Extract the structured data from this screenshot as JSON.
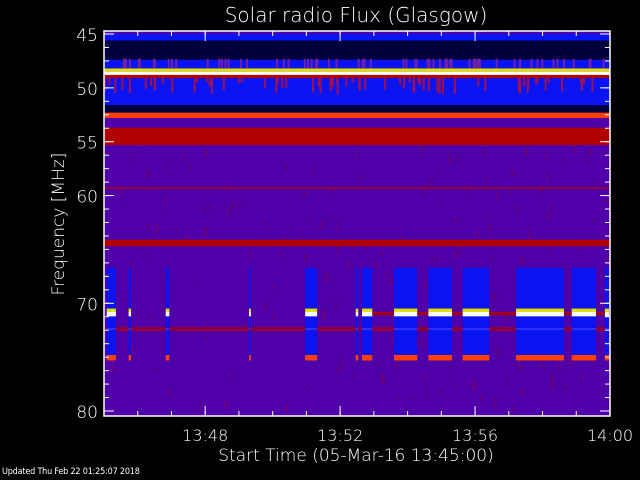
{
  "chart_data": {
    "type": "heatmap",
    "title": "Solar radio Flux (Glasgow)",
    "xlabel": "Start Time (05-Mar-16 13:45:00)",
    "ylabel": "Frequency [MHz]",
    "xlim": [
      "13:45:00",
      "14:00:00"
    ],
    "ylim": [
      80,
      45
    ],
    "y_inverted": true,
    "xticks": [
      {
        "time": "13:48:00",
        "label": "13:48"
      },
      {
        "time": "13:52:00",
        "label": "13:52"
      },
      {
        "time": "13:56:00",
        "label": "13:56"
      },
      {
        "time": "14:00:00",
        "label": "14:00"
      }
    ],
    "x_minor_tick_minutes": 1,
    "yticks": [
      {
        "value": 45,
        "label": "45"
      },
      {
        "value": 50,
        "label": "50"
      },
      {
        "value": 55,
        "label": "55"
      },
      {
        "value": 60,
        "label": "60"
      },
      {
        "value": 70,
        "label": "70"
      },
      {
        "value": 80,
        "label": "80"
      }
    ],
    "y_minor_tick_mhz": 1.25,
    "background_color": "#5000a8",
    "colors": {
      "navy": "#00003c",
      "blue": "#0a14f0",
      "red": "#b00000",
      "orange": "#ff4000",
      "yellow": "#e0e000",
      "white": "#ffffff",
      "dark_red": "#8a0040"
    },
    "continuous_bands": [
      {
        "f_low": 45.0,
        "f_high": 45.6,
        "color": "blue"
      },
      {
        "f_low": 45.6,
        "f_high": 47.4,
        "color": "navy"
      },
      {
        "f_low": 47.4,
        "f_high": 48.2,
        "color": "blue"
      },
      {
        "f_low": 48.2,
        "f_high": 48.5,
        "color": "yellow"
      },
      {
        "f_low": 48.5,
        "f_high": 48.8,
        "color": "white"
      },
      {
        "f_low": 48.8,
        "f_high": 49.1,
        "color": "red"
      },
      {
        "f_low": 49.1,
        "f_high": 51.6,
        "color": "blue"
      },
      {
        "f_low": 51.6,
        "f_high": 52.3,
        "color": "navy"
      },
      {
        "f_low": 52.3,
        "f_high": 52.8,
        "color": "orange"
      },
      {
        "f_low": 53.7,
        "f_high": 55.3,
        "color": "red"
      },
      {
        "f_low": 59.2,
        "f_high": 59.4,
        "color": "dark_red"
      },
      {
        "f_low": 64.1,
        "f_high": 64.7,
        "color": "red"
      },
      {
        "f_low": 72.2,
        "f_high": 72.6,
        "color": "dark_red"
      }
    ],
    "intermittent_bursts": {
      "f_low": 66.7,
      "f_high": 75.3,
      "color": "blue",
      "line_bands": [
        {
          "f_low": 70.5,
          "f_high": 70.8,
          "color": "yellow"
        },
        {
          "f_low": 70.8,
          "f_high": 71.2,
          "color": "white"
        },
        {
          "f_low": 74.8,
          "f_high": 75.3,
          "color": "orange"
        }
      ],
      "intervals": [
        [
          "13:45:05",
          "13:45:21"
        ],
        [
          "13:45:44",
          "13:45:48"
        ],
        [
          "13:46:50",
          "13:46:56"
        ],
        [
          "13:49:18",
          "13:49:21"
        ],
        [
          "13:50:58",
          "13:51:19"
        ],
        [
          "13:52:28",
          "13:52:32"
        ],
        [
          "13:52:39",
          "13:52:57"
        ],
        [
          "13:53:36",
          "13:54:17"
        ],
        [
          "13:54:37",
          "13:55:19"
        ],
        [
          "13:55:38",
          "13:56:25"
        ],
        [
          "13:57:13",
          "13:58:38"
        ],
        [
          "13:58:52",
          "13:59:35"
        ],
        [
          "13:59:51",
          "13:59:58"
        ]
      ]
    }
  },
  "footer": {
    "updated": "Updated Thu Feb 22 01:25:07 2018"
  }
}
